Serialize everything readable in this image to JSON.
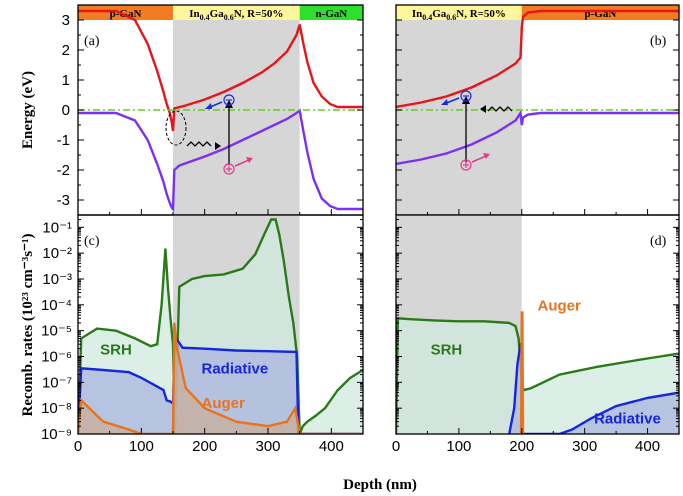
{
  "chart_data": [
    {
      "panel": "(a)",
      "type": "line",
      "ylabel": "Energy (eV)",
      "xlim": [
        0,
        450
      ],
      "ylim": [
        -3.5,
        3.5
      ],
      "yticks": [
        -3,
        -2,
        -1,
        0,
        1,
        2,
        3
      ],
      "regions": [
        {
          "label": "p-GaN",
          "x0": 0,
          "x1": 150,
          "color": "#f47c20"
        },
        {
          "label": "In0.4Ga0.6N, R=50%",
          "label_parts": [
            "In",
            "0.4",
            "Ga",
            "0.6",
            "N, R=50%"
          ],
          "x0": 150,
          "x1": 350,
          "color": "#fff59a"
        },
        {
          "label": "n-GaN",
          "x0": 350,
          "x1": 450,
          "color": "#2ee02e"
        }
      ],
      "shaded": [
        150,
        350
      ],
      "series": [
        {
          "name": "conduction",
          "color": "#e8141b",
          "x": [
            0,
            60,
            90,
            110,
            125,
            135,
            140,
            145,
            148,
            150,
            152,
            170,
            200,
            230,
            260,
            290,
            310,
            330,
            345,
            350,
            355,
            362,
            372,
            385,
            398,
            410,
            430,
            450
          ],
          "y": [
            3.3,
            3.3,
            3.0,
            2.2,
            1.3,
            0.6,
            0.2,
            -0.1,
            -0.4,
            -0.7,
            0.05,
            0.15,
            0.35,
            0.6,
            0.9,
            1.25,
            1.55,
            1.95,
            2.5,
            2.85,
            2.3,
            1.6,
            0.9,
            0.45,
            0.2,
            0.1,
            0.1,
            0.1
          ]
        },
        {
          "name": "valence",
          "color": "#7b2ff7",
          "x": [
            0,
            60,
            90,
            110,
            125,
            135,
            140,
            145,
            148,
            150,
            152,
            160,
            200,
            230,
            260,
            290,
            310,
            330,
            345,
            350,
            355,
            362,
            372,
            385,
            398,
            410,
            430,
            450
          ],
          "y": [
            -0.1,
            -0.1,
            -0.35,
            -1.0,
            -1.8,
            -2.4,
            -2.8,
            -3.1,
            -3.25,
            -3.3,
            -2.0,
            -1.85,
            -1.55,
            -1.3,
            -1.0,
            -0.7,
            -0.5,
            -0.3,
            -0.1,
            -0.02,
            -0.6,
            -1.4,
            -2.3,
            -2.95,
            -3.2,
            -3.3,
            -3.3,
            -3.3
          ]
        },
        {
          "name": "fermi",
          "color": "#66cc22",
          "dashed": true,
          "x": [
            0,
            450
          ],
          "y": [
            0,
            0
          ]
        }
      ]
    },
    {
      "panel": "(b)",
      "type": "line",
      "xlim": [
        0,
        450
      ],
      "ylim": [
        -3.5,
        3.5
      ],
      "regions": [
        {
          "label": "In0.4Ga0.6N, R=50%",
          "label_parts": [
            "In",
            "0.4",
            "Ga",
            "0.6",
            "N, R=50%"
          ],
          "x0": 0,
          "x1": 200,
          "color": "#fff59a"
        },
        {
          "label": "p-GaN",
          "x0": 200,
          "x1": 450,
          "color": "#f47c20"
        }
      ],
      "shaded": [
        0,
        200
      ],
      "series": [
        {
          "name": "conduction",
          "color": "#e8141b",
          "x": [
            0,
            40,
            80,
            120,
            160,
            190,
            198,
            200,
            202,
            210,
            230,
            450
          ],
          "y": [
            0.1,
            0.25,
            0.45,
            0.75,
            1.15,
            1.55,
            1.75,
            2.75,
            3.1,
            3.25,
            3.3,
            3.3
          ]
        },
        {
          "name": "valence",
          "color": "#7b2ff7",
          "x": [
            0,
            40,
            80,
            120,
            160,
            190,
            198,
            200,
            202,
            210,
            230,
            450
          ],
          "y": [
            -1.8,
            -1.65,
            -1.45,
            -1.15,
            -0.75,
            -0.35,
            -0.1,
            -0.5,
            -0.25,
            -0.15,
            -0.1,
            -0.1
          ]
        },
        {
          "name": "fermi",
          "color": "#66cc22",
          "dashed": true,
          "x": [
            0,
            450
          ],
          "y": [
            0,
            0
          ]
        }
      ]
    },
    {
      "panel": "(c)",
      "type": "area",
      "xlabel": "Depth (nm)",
      "ylabel": "Recomb. rates (10²³ cm⁻³s⁻¹)",
      "yscale": "log",
      "xlim": [
        0,
        450
      ],
      "ylim": [
        1e-09,
        0.3
      ],
      "xticks": [
        0,
        100,
        200,
        300,
        400
      ],
      "yticks": [
        "10⁻⁹",
        "10⁻⁸",
        "10⁻⁷",
        "10⁻⁶",
        "10⁻⁵",
        "10⁻⁴",
        "10⁻³",
        "10⁻²",
        "10⁻¹"
      ],
      "shaded": [
        150,
        350
      ],
      "series": [
        {
          "name": "SRH",
          "color": "#2a7a1a",
          "fill": "#cfe9df",
          "x": [
            0,
            5,
            30,
            60,
            90,
            115,
            125,
            132,
            138,
            142,
            146,
            150,
            153,
            160,
            180,
            200,
            230,
            260,
            280,
            295,
            305,
            312,
            318,
            325,
            333,
            340,
            346,
            350,
            355,
            362,
            375,
            390,
            410,
            430,
            450
          ],
          "y": [
            1e-09,
            5e-06,
            1.2e-05,
            1e-05,
            5e-06,
            2.5e-06,
            3e-06,
            0.0001,
            0.015,
            0.0005,
            3e-05,
            3e-06,
            1e-09,
            0.0005,
            0.001,
            0.0013,
            0.0015,
            0.0025,
            0.009,
            0.06,
            0.2,
            0.2,
            0.05,
            0.005,
            0.0002,
            2e-05,
            1e-06,
            1e-09,
            2e-09,
            3e-09,
            5e-09,
            1e-08,
            5e-08,
            1.5e-07,
            3e-07
          ]
        },
        {
          "name": "Radiative",
          "color": "#1525e0",
          "fill": "#a9b4df",
          "x": [
            0,
            5,
            40,
            80,
            100,
            120,
            135,
            140,
            146,
            150,
            153,
            165,
            200,
            250,
            300,
            345,
            348,
            350,
            360,
            380,
            400,
            420,
            450
          ],
          "y": [
            1e-09,
            3.5e-07,
            3e-07,
            2.5e-07,
            1.5e-07,
            8e-08,
            5e-08,
            2e-08,
            1.8e-08,
            1.5e-08,
            6e-06,
            2.2e-06,
            2e-06,
            1.7e-06,
            1.6e-06,
            1.5e-06,
            1e-09,
            1e-09,
            1e-09,
            1e-09,
            1e-09,
            1e-09,
            1e-09
          ]
        },
        {
          "name": "Auger",
          "color": "#e8731c",
          "fill": "#c9ad9a",
          "x": [
            0,
            5,
            40,
            80,
            100,
            120,
            140,
            148,
            150,
            152,
            155,
            170,
            200,
            250,
            300,
            330,
            343,
            350,
            352,
            450
          ],
          "y": [
            1e-09,
            2e-08,
            3e-09,
            1.5e-09,
            1e-09,
            1e-09,
            1e-09,
            1e-09,
            1e-09,
            2e-05,
            3e-06,
            6e-08,
            1e-08,
            3e-09,
            2e-09,
            3e-09,
            1e-08,
            1e-09,
            1e-09,
            1e-09
          ]
        }
      ],
      "annotations": [
        {
          "text": "SRH",
          "x": 35,
          "y": 1.2e-06
        },
        {
          "text": "Radiative",
          "x": 195,
          "y": 2.2e-07
        },
        {
          "text": "Auger",
          "x": 195,
          "y": 1e-08
        }
      ]
    },
    {
      "panel": "(d)",
      "type": "area",
      "xlabel": "Depth (nm)",
      "yscale": "log",
      "xlim": [
        0,
        450
      ],
      "ylim": [
        1e-09,
        0.3
      ],
      "xticks": [
        0,
        100,
        200,
        300,
        400
      ],
      "shaded": [
        0,
        200
      ],
      "series": [
        {
          "name": "SRH",
          "color": "#2a7a1a",
          "fill": "#cfe9df",
          "x": [
            0,
            3,
            20,
            60,
            100,
            140,
            180,
            190,
            195,
            200,
            203,
            215,
            260,
            320,
            380,
            420,
            450
          ],
          "y": [
            1e-09,
            3e-05,
            2.8e-05,
            2.5e-05,
            2.3e-05,
            2.3e-05,
            2e-05,
            1.5e-05,
            5e-06,
            1e-07,
            5e-08,
            6e-08,
            2e-07,
            4e-07,
            7e-07,
            1e-06,
            1.3e-06
          ]
        },
        {
          "name": "Radiative",
          "color": "#1525e0",
          "fill": "#a9b4df",
          "x": [
            180,
            188,
            193,
            198,
            200,
            200.5,
            210,
            240,
            260,
            280,
            310,
            350,
            400,
            450
          ],
          "y": [
            1e-09,
            1e-08,
            5e-07,
            3e-06,
            3e-06,
            1e-09,
            1e-09,
            1e-09,
            1e-09,
            1.5e-09,
            4e-09,
            1.2e-08,
            2.5e-08,
            4e-08
          ]
        },
        {
          "name": "Auger",
          "color": "#e8731c",
          "fill": "#c9ad9a",
          "x": [
            199,
            200,
            201,
            202
          ],
          "y": [
            1e-09,
            5e-05,
            5e-05,
            1e-09
          ]
        }
      ],
      "annotations": [
        {
          "text": "SRH",
          "x": 55,
          "y": 1.2e-06
        },
        {
          "text": "Auger",
          "x": 225,
          "y": 6e-05
        },
        {
          "text": "Radiative",
          "x": 315,
          "y": 2.5e-09
        }
      ]
    }
  ]
}
